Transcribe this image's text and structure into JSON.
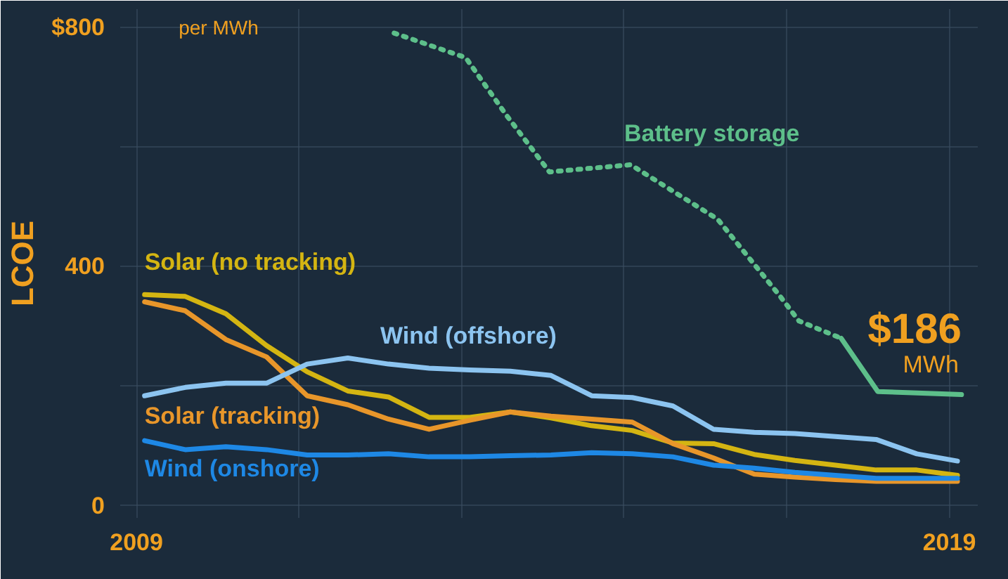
{
  "chart_data": {
    "type": "line",
    "ylabel": "LCOE",
    "x": [
      2009.1,
      2009.6,
      2010.1,
      2010.6,
      2011.1,
      2011.6,
      2012.1,
      2012.6,
      2013.1,
      2013.6,
      2014.1,
      2014.6,
      2015.1,
      2015.6,
      2016.1,
      2016.6,
      2017.1,
      2017.6,
      2018.1,
      2018.6,
      2019.1
    ],
    "series": [
      {
        "name": "Solar (no tracking)",
        "color": "#d4b512",
        "values": [
          353,
          350,
          321,
          268,
          224,
          192,
          182,
          148,
          148,
          157,
          147,
          134,
          126,
          105,
          104,
          86,
          76,
          68,
          60,
          60,
          51
        ]
      },
      {
        "name": "Solar (tracking)",
        "color": "#e8962a",
        "values": [
          341,
          326,
          278,
          249,
          184,
          169,
          145,
          128,
          143,
          157,
          150,
          145,
          140,
          104,
          80,
          53,
          48,
          44,
          41,
          41,
          41
        ]
      },
      {
        "name": "Wind (offshore)",
        "color": "#8cc4f0",
        "values": [
          184,
          198,
          205,
          205,
          237,
          247,
          237,
          230,
          227,
          225,
          218,
          184,
          181,
          167,
          128,
          123,
          121,
          116,
          111,
          87,
          75
        ]
      },
      {
        "name": "Wind (onshore)",
        "color": "#1e88e5",
        "values": [
          109,
          94,
          99,
          94,
          85,
          85,
          87,
          82,
          82,
          84,
          85,
          89,
          87,
          82,
          68,
          63,
          56,
          51,
          46,
          46,
          46
        ]
      },
      {
        "name": "Battery storage",
        "color": "#5dbf8a",
        "line_style": "dotted",
        "x": [
          2012.17,
          2013.05,
          2013.55,
          2014.08,
          2015.08,
          2016.15,
          2016.92,
          2017.15,
          2017.67
        ],
        "values": [
          790,
          749,
          653,
          558,
          570,
          479,
          350,
          309,
          280
        ]
      },
      {
        "color": "#5dbf8a",
        "line_style": "solid",
        "x": [
          2017.67,
          2018.12,
          2019.15
        ],
        "values": [
          280,
          191,
          186
        ]
      }
    ],
    "annotations": [
      "per MWh",
      {
        "text": "$186",
        "x": 2019.15,
        "y": 186
      },
      "MWh"
    ],
    "xlim": [
      2008.8,
      2019.35
    ],
    "ylim": [
      -20,
      830
    ],
    "xticks": [
      {
        "value": 2009,
        "label": "2009"
      },
      {
        "value": 2011,
        "label": null
      },
      {
        "value": 2013,
        "label": null
      },
      {
        "value": 2015,
        "label": null
      },
      {
        "value": 2017,
        "label": null
      },
      {
        "value": 2019,
        "label": "2019"
      }
    ],
    "yticks": [
      0,
      {
        "value": 200,
        "label": null
      },
      400,
      {
        "value": 600,
        "label": null
      },
      {
        "value": 800,
        "label": "$800"
      }
    ],
    "grid": true,
    "legend": false,
    "marker": "none",
    "line_style": "solid"
  }
}
